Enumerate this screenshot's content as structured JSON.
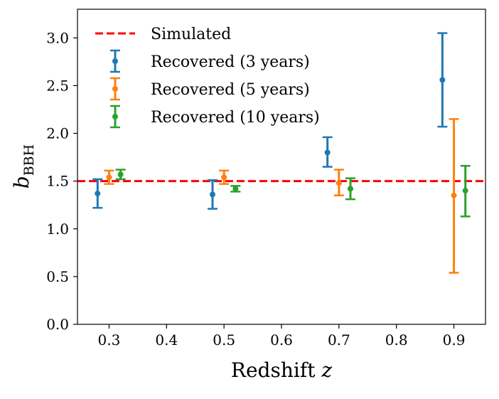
{
  "chart_data": {
    "type": "scatter",
    "title": "",
    "xlabel_text": "Redshift ",
    "xlabel_var": "z",
    "ylabel_main": "b",
    "ylabel_sub": "BBH",
    "xlim": [
      0.245,
      0.955
    ],
    "ylim": [
      0.0,
      3.3
    ],
    "xticks": [
      0.3,
      0.4,
      0.5,
      0.6,
      0.7,
      0.8,
      0.9
    ],
    "xtick_labels": [
      "0.3",
      "0.4",
      "0.5",
      "0.6",
      "0.7",
      "0.8",
      "0.9"
    ],
    "yticks": [
      0.0,
      0.5,
      1.0,
      1.5,
      2.0,
      2.5,
      3.0
    ],
    "ytick_labels": [
      "0.0",
      "0.5",
      "1.0",
      "1.5",
      "2.0",
      "2.5",
      "3.0"
    ],
    "grid": false,
    "legend_position": "upper-left",
    "reference_line": {
      "name": "Simulated",
      "y": 1.5,
      "color": "#ff0000",
      "style": "dashed"
    },
    "series": [
      {
        "name": "Recovered (3 years)",
        "color": "#1f77b4",
        "x": [
          0.28,
          0.48,
          0.68,
          0.88
        ],
        "y": [
          1.37,
          1.36,
          1.8,
          2.56
        ],
        "y_low": [
          1.22,
          1.21,
          1.65,
          2.07
        ],
        "y_high": [
          1.52,
          1.51,
          1.96,
          3.05
        ]
      },
      {
        "name": "Recovered (5 years)",
        "color": "#ff7f0e",
        "x": [
          0.3,
          0.5,
          0.7,
          0.9
        ],
        "y": [
          1.54,
          1.54,
          1.48,
          1.35
        ],
        "y_low": [
          1.47,
          1.47,
          1.35,
          0.54
        ],
        "y_high": [
          1.61,
          1.61,
          1.62,
          2.15
        ]
      },
      {
        "name": "Recovered (10 years)",
        "color": "#2ca02c",
        "x": [
          0.32,
          0.52,
          0.72,
          0.92
        ],
        "y": [
          1.57,
          1.42,
          1.42,
          1.4
        ],
        "y_low": [
          1.52,
          1.39,
          1.31,
          1.13
        ],
        "y_high": [
          1.62,
          1.45,
          1.53,
          1.66
        ]
      }
    ]
  }
}
